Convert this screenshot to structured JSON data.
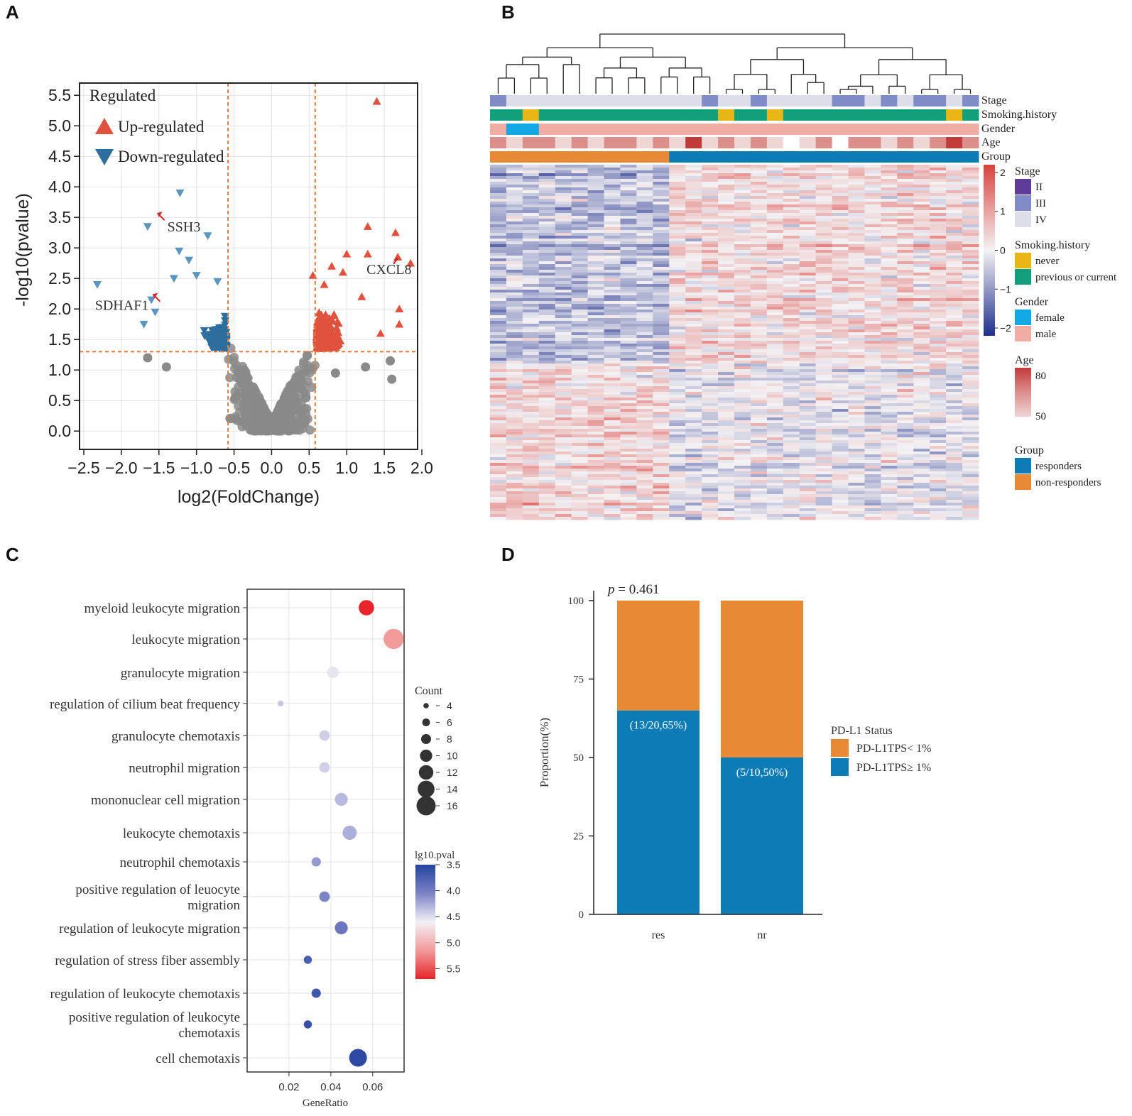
{
  "panels": {
    "a": {
      "letter": "A"
    },
    "b": {
      "letter": "B"
    },
    "c": {
      "letter": "C"
    },
    "d": {
      "letter": "D"
    }
  },
  "colors": {
    "up": "#E0523E",
    "down": "#2E6E9E",
    "down_marker": "#5B95C0",
    "ns": "#8A8A8A",
    "threshold": "#E07B39",
    "orange": "#E68A35",
    "blue": "#0B7CB6",
    "stage_ii": "#5E3C99",
    "stage_iii": "#7F8CC7",
    "stage_iv": "#DEDEEA",
    "never": "#E8B616",
    "previous": "#12A07A",
    "female": "#12A8E6",
    "male": "#F0ADA4",
    "age_high": "#C23B3B",
    "age_mid": "#DC8E8B",
    "age_low": "#EFD5D6",
    "heat_high": "#D9423D",
    "heat_low": "#1E2E8C",
    "bubble_low": "#2443A0",
    "bubble_high": "#E83A3A"
  },
  "chart_data": [
    {
      "id": "volcano",
      "type": "scatter",
      "xlabel": "log2(FoldChange)",
      "ylabel": "-log10(pvalue)",
      "xlim": [
        -2.5,
        2.0
      ],
      "ylim": [
        -0.3,
        5.7
      ],
      "xticks": [
        "−2.5",
        "−2.0",
        "−1.5",
        "−1.0",
        "−0.5",
        "0.0",
        "0.5",
        "1.0",
        "1.5",
        "2.0"
      ],
      "xtick_values": [
        -2.5,
        -2.0,
        -1.5,
        -1.0,
        -0.5,
        0.0,
        0.5,
        1.0,
        1.5,
        2.0
      ],
      "yticks": [
        "0.0",
        "0.5",
        "1.0",
        "1.5",
        "2.0",
        "2.5",
        "3.0",
        "3.5",
        "4.0",
        "4.5",
        "5.0",
        "5.5"
      ],
      "ytick_values": [
        0.0,
        0.5,
        1.0,
        1.5,
        2.0,
        2.5,
        3.0,
        3.5,
        4.0,
        4.5,
        5.0,
        5.5
      ],
      "thresholds": {
        "x": [
          -0.58,
          0.58
        ],
        "y": 1.3
      },
      "legend": {
        "title": "Regulated",
        "items": [
          "Up-regulated",
          "Down-regulated"
        ],
        "position": "top-left"
      },
      "up_points": [
        [
          1.4,
          5.4
        ],
        [
          1.85,
          2.75
        ],
        [
          1.68,
          2.85
        ],
        [
          1.65,
          3.25
        ],
        [
          1.28,
          3.35
        ],
        [
          1.28,
          2.9
        ],
        [
          1.0,
          2.9
        ],
        [
          1.7,
          2.0
        ],
        [
          1.7,
          1.75
        ],
        [
          1.45,
          1.6
        ],
        [
          1.2,
          2.2
        ],
        [
          0.95,
          2.6
        ],
        [
          0.55,
          2.55
        ],
        [
          0.7,
          2.4
        ],
        [
          0.8,
          2.7
        ]
      ],
      "down_points": [
        [
          -1.22,
          3.9
        ],
        [
          -1.65,
          3.35
        ],
        [
          -0.85,
          3.2
        ],
        [
          -1.23,
          2.95
        ],
        [
          -2.32,
          2.4
        ],
        [
          -1.7,
          1.75
        ],
        [
          -1.55,
          1.95
        ],
        [
          -1.6,
          2.15
        ],
        [
          -1.3,
          2.5
        ],
        [
          -1.0,
          2.55
        ],
        [
          -0.72,
          2.45
        ],
        [
          -1.1,
          2.8
        ]
      ],
      "ns_points": [
        [
          -1.65,
          1.2
        ],
        [
          1.6,
          0.85
        ],
        [
          1.58,
          1.15
        ],
        [
          1.25,
          1.05
        ],
        [
          -1.4,
          1.05
        ],
        [
          0.85,
          0.95
        ]
      ],
      "annotations": [
        {
          "label": "SSH3",
          "x": -1.52,
          "y": 3.57
        },
        {
          "label": "SDHAF1",
          "x": -1.58,
          "y": 2.24
        },
        {
          "label": "CXCL8",
          "x": 1.68,
          "y": 2.83
        }
      ]
    },
    {
      "id": "heatmap",
      "type": "heatmap",
      "annotation_rows": [
        "Stage",
        "Smoking.history",
        "Gender",
        "Age",
        "Group"
      ],
      "n_samples": 30,
      "group": {
        "non_responders": 11,
        "responders": 19
      },
      "colorbar_ticks": [
        "2",
        "1",
        "0",
        "−1",
        "−2"
      ],
      "colorbar_values": [
        2,
        1,
        0,
        -1,
        -2
      ],
      "legends": [
        {
          "title": "Stage",
          "items": [
            "II",
            "III",
            "IV"
          ]
        },
        {
          "title": "Smoking.history",
          "items": [
            "never",
            "previous or current"
          ]
        },
        {
          "title": "Gender",
          "items": [
            "female",
            "male"
          ]
        },
        {
          "title": "Age",
          "items": [
            "80",
            "50"
          ]
        },
        {
          "title": "Group",
          "items": [
            "responders",
            "non-responders"
          ]
        }
      ]
    },
    {
      "id": "go_dotplot",
      "type": "scatter",
      "xlabel": "GeneRatio",
      "xlim": [
        0.0,
        0.075
      ],
      "xticks": [
        "0.02",
        "0.04",
        "0.06"
      ],
      "xtick_values": [
        0.02,
        0.04,
        0.06
      ],
      "terms": [
        {
          "label": "myeloid leukocyte migration",
          "ratio": 0.057,
          "count": 12,
          "pval": 5.6
        },
        {
          "label": "leukocyte migration",
          "ratio": 0.07,
          "count": 16,
          "pval": 5.0
        },
        {
          "label": "granulocyte migration",
          "ratio": 0.041,
          "count": 9,
          "pval": 4.45
        },
        {
          "label": "regulation of cilium beat frequency",
          "ratio": 0.016,
          "count": 4,
          "pval": 4.3
        },
        {
          "label": "granulocyte chemotaxis",
          "ratio": 0.037,
          "count": 8,
          "pval": 4.35
        },
        {
          "label": "neutrophil migration",
          "ratio": 0.037,
          "count": 8,
          "pval": 4.35
        },
        {
          "label": "mononuclear cell migration",
          "ratio": 0.045,
          "count": 10,
          "pval": 4.25
        },
        {
          "label": "leukocyte chemotaxis",
          "ratio": 0.049,
          "count": 11,
          "pval": 4.2
        },
        {
          "label": "neutrophil chemotaxis",
          "ratio": 0.033,
          "count": 7,
          "pval": 4.1
        },
        {
          "label": "positive regulation of leuocyte migration",
          "label_lines": [
            "positive regulation of leuocyte",
            "migration"
          ],
          "ratio": 0.037,
          "count": 8,
          "pval": 4.0
        },
        {
          "label": "regulation of leukocyte migration",
          "ratio": 0.045,
          "count": 10,
          "pval": 3.9
        },
        {
          "label": "regulation of stress fiber assembly",
          "ratio": 0.029,
          "count": 6,
          "pval": 3.7
        },
        {
          "label": "regulation of leukocyte chemotaxis",
          "ratio": 0.033,
          "count": 7,
          "pval": 3.65
        },
        {
          "label": "positive regulation of leukocyte chemotaxis",
          "label_lines": [
            "positive regulation of leukocyte",
            "chemotaxis"
          ],
          "ratio": 0.029,
          "count": 6,
          "pval": 3.6
        },
        {
          "label": "cell chemotaxis",
          "ratio": 0.053,
          "count": 14,
          "pval": 3.55
        }
      ],
      "size_legend": {
        "title": "Count",
        "values": [
          4,
          6,
          8,
          10,
          12,
          14,
          16
        ],
        "labels": [
          "4",
          "6",
          "8",
          "10",
          "12",
          "14",
          "16"
        ]
      },
      "color_legend": {
        "title": "lg10.pval",
        "values": [
          3.5,
          4.0,
          4.5,
          5.0,
          5.5
        ],
        "labels": [
          "3.5",
          "4.0",
          "4.5",
          "5.0",
          "5.5"
        ]
      }
    },
    {
      "id": "stacked_bar",
      "type": "bar",
      "stacked": true,
      "categories": [
        "res",
        "nr"
      ],
      "ylabel": "Proportion(%)",
      "ylim": [
        0,
        100
      ],
      "yticks": [
        "0",
        "25",
        "50",
        "75",
        "100"
      ],
      "ytick_values": [
        0,
        25,
        50,
        75,
        100
      ],
      "series": [
        {
          "name": "PD-L1TPS≥ 1%",
          "values": [
            65,
            50
          ],
          "labels": [
            "(13/20,65%)",
            "(5/10,50%)"
          ]
        },
        {
          "name": "PD-L1TPS< 1%",
          "values": [
            35,
            50
          ]
        }
      ],
      "legend_title": "PD-L1 Status",
      "legend_items": [
        "PD-L1TPS< 1%",
        "PD-L1TPS≥ 1%"
      ],
      "pvalue_label": "p",
      "pvalue_text": " = 0.461"
    }
  ]
}
